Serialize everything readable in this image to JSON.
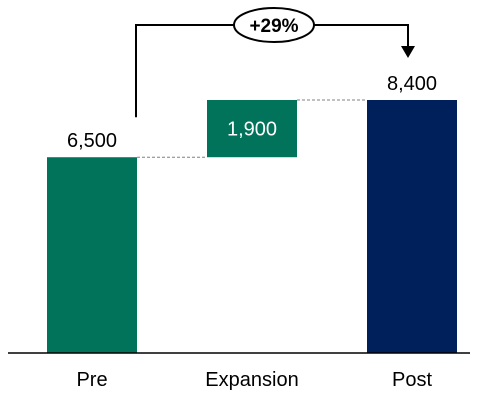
{
  "chart_data": {
    "type": "bar",
    "subtype": "waterfall",
    "categories": [
      "Pre",
      "Expansion",
      "Post"
    ],
    "values": [
      6500,
      1900,
      8400
    ],
    "value_labels": [
      "6,500",
      "1,900",
      "8,400"
    ],
    "bar_kinds": [
      "total",
      "increment",
      "total"
    ],
    "growth_label": "+29%",
    "ylim": [
      0,
      8400
    ],
    "grid": false,
    "legend": "none"
  },
  "colors": {
    "pre_bar": "#00735a",
    "increment_bar": "#00735a",
    "post_bar": "#00205b",
    "increment_label": "#ffffff",
    "connector": "#808080",
    "axis": "#000000"
  }
}
